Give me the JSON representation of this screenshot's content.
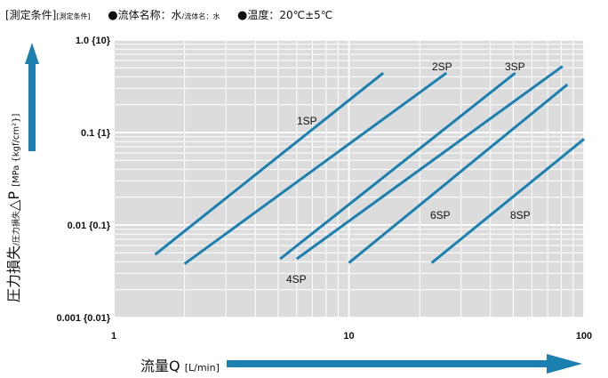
{
  "header": {
    "cond_title": "[測定条件]",
    "cond_title_small": "[測定条件]",
    "fluid_bullet": "●",
    "fluid_label": "流体名称：水",
    "fluid_small": "/流体名：水",
    "temp_bullet": "●",
    "temp_label": "温度：20℃±5℃"
  },
  "y_axis": {
    "label_main": "圧力損失",
    "label_small": "/圧力損失",
    "label_symbol": "△P",
    "unit": "[MPa {kgf/cm²}]"
  },
  "x_axis": {
    "label_main": "流量Q",
    "unit": "[L/min]"
  },
  "colors": {
    "line": "#1b7fb0",
    "arrow": "#1b7fb0",
    "plot_bg": "#dcdcdc",
    "grid": "#ffffff"
  },
  "chart_data": {
    "type": "line",
    "x_scale": "log",
    "y_scale": "log",
    "xlim": [
      1,
      100
    ],
    "ylim": [
      0.001,
      1.0
    ],
    "x_ticks": [
      {
        "value": 1,
        "label": "1"
      },
      {
        "value": 10,
        "label": "10"
      },
      {
        "value": 100,
        "label": "100"
      }
    ],
    "y_ticks": [
      {
        "value": 1.0,
        "label": "1.0 {10}"
      },
      {
        "value": 0.1,
        "label": "0.1 {1}"
      },
      {
        "value": 0.01,
        "label": "0.01 {0.1}"
      },
      {
        "value": 0.001,
        "label": "0.001 {0.01}"
      }
    ],
    "grid": true,
    "series": [
      {
        "name": "1SP",
        "x": [
          1.5,
          14
        ],
        "y": [
          0.0048,
          0.44
        ]
      },
      {
        "name": "2SP",
        "x": [
          2,
          26
        ],
        "y": [
          0.0038,
          0.44
        ]
      },
      {
        "name": "4SP",
        "x": [
          5.1,
          51
        ],
        "y": [
          0.0043,
          0.44
        ]
      },
      {
        "name": "3SP",
        "x": [
          6,
          81
        ],
        "y": [
          0.0043,
          0.52
        ]
      },
      {
        "name": "6SP",
        "x": [
          10,
          85
        ],
        "y": [
          0.0039,
          0.33
        ]
      },
      {
        "name": "8SP",
        "x": [
          22.5,
          100
        ],
        "y": [
          0.0039,
          0.085
        ]
      }
    ]
  }
}
